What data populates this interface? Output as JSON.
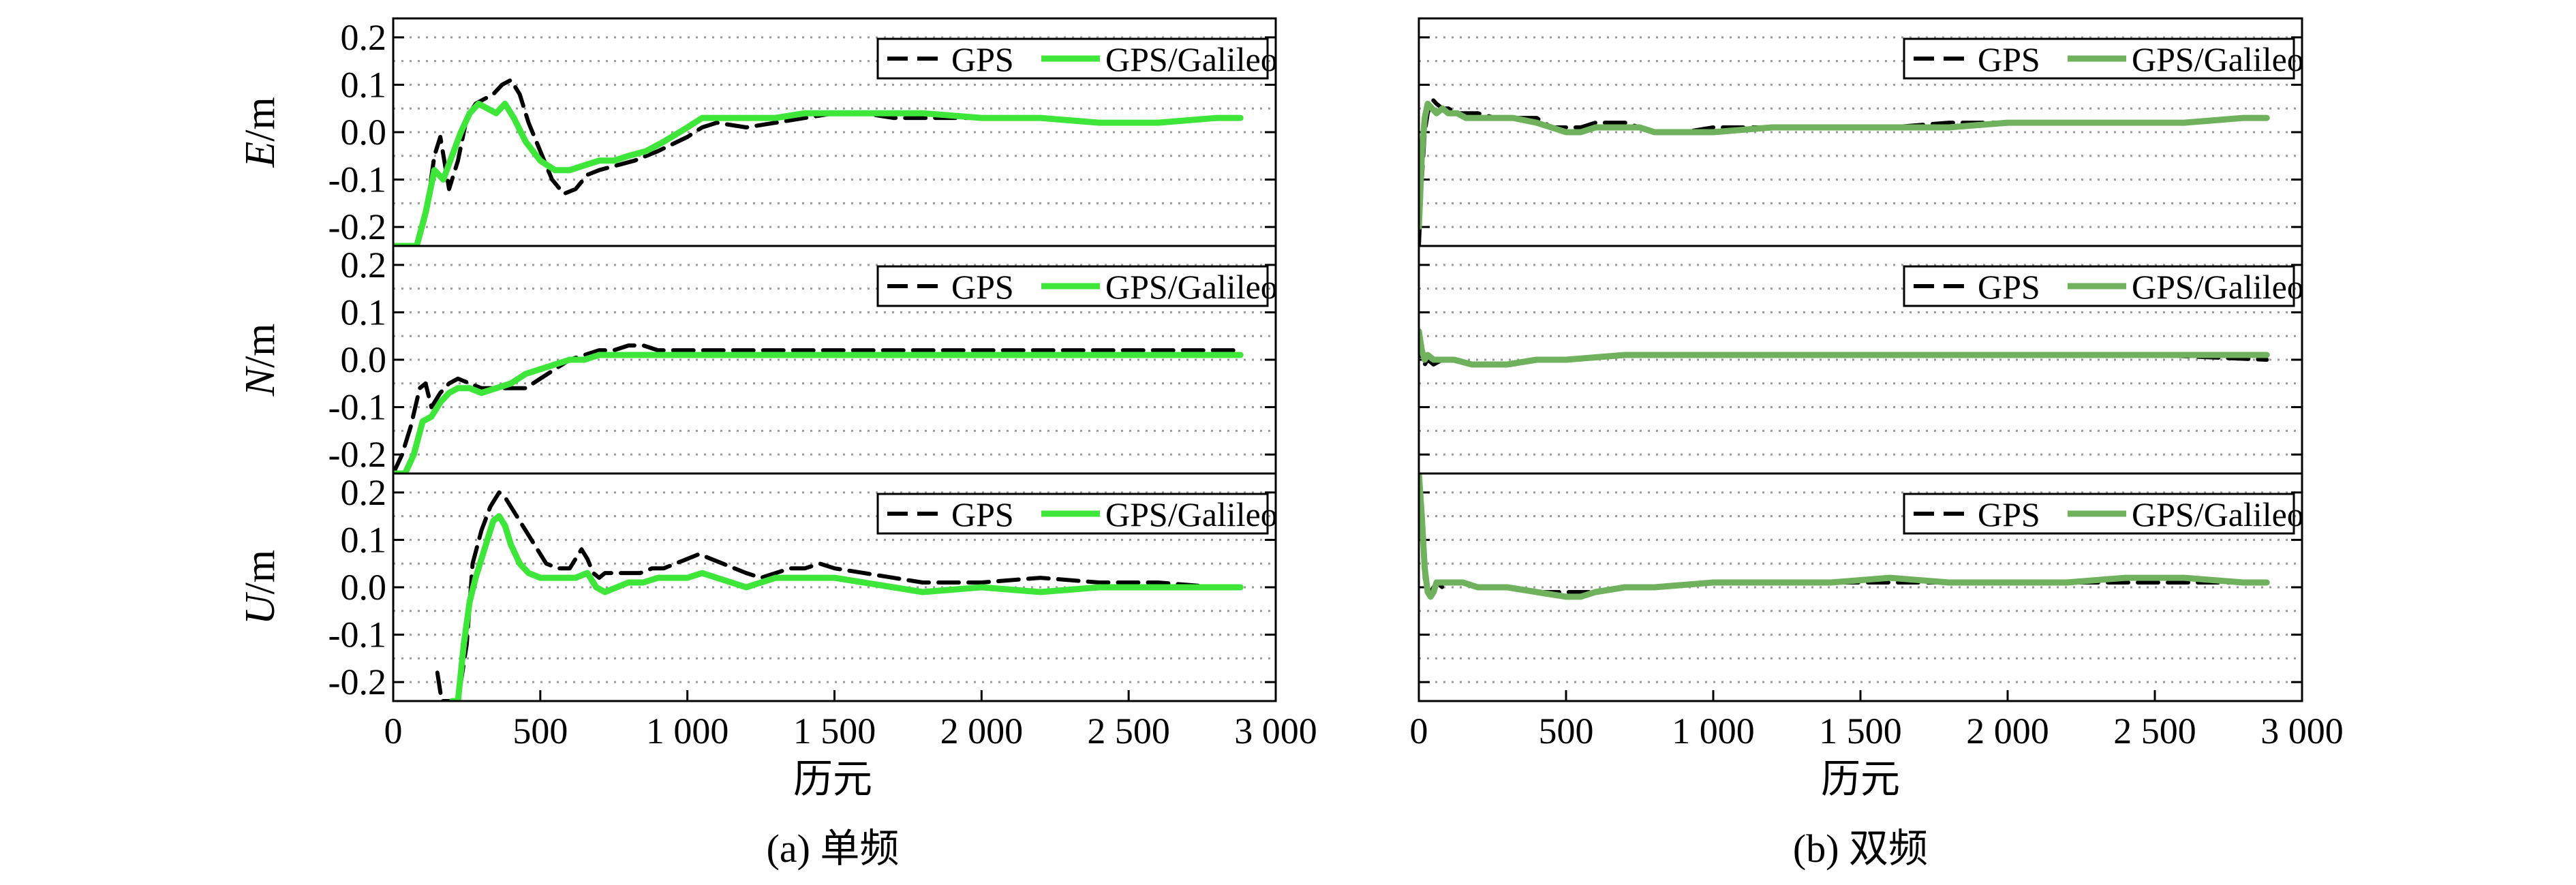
{
  "figure": {
    "panel_a_caption": "(a) 单频",
    "panel_b_caption": "(b) 双频",
    "xlabel": "历元",
    "x_tick_labels": [
      "0",
      "500",
      "1 000",
      "1 500",
      "2 000",
      "2 500",
      "3 000"
    ],
    "y_tick_labels": [
      "0.2",
      "0.1",
      "0.0",
      "-0.1",
      "-0.2"
    ],
    "legend": [
      "GPS",
      "GPS/Galileo"
    ],
    "rows": [
      {
        "id": "E",
        "label_italic": "E",
        "label_unit": "/m"
      },
      {
        "id": "N",
        "label_italic": "N",
        "label_unit": "/m"
      },
      {
        "id": "U",
        "label_italic": "U",
        "label_unit": "/m"
      }
    ]
  },
  "colors": {
    "gps": "#000000",
    "gps_galileo_single": "#3ee63a",
    "gps_galileo_dual": "#6fb15c",
    "grid": "#9a9a9a",
    "axis": "#000000"
  },
  "chart_data": [
    {
      "panel": "a",
      "row": "E",
      "type": "line",
      "xlim": [
        0,
        3000
      ],
      "ylim": [
        -0.24,
        0.24
      ],
      "xlabel": "",
      "ylabel": "E/m",
      "grid": true,
      "legend_position": "top-right",
      "series": [
        {
          "name": "GPS",
          "style": "dashed",
          "x": [
            0,
            40,
            80,
            110,
            140,
            160,
            190,
            220,
            250,
            280,
            310,
            340,
            370,
            400,
            430,
            460,
            500,
            540,
            580,
            620,
            660,
            700,
            760,
            820,
            900,
            1000,
            1050,
            1100,
            1200,
            1300,
            1400,
            1500,
            1600,
            1700,
            1800,
            2000,
            2200,
            2400,
            2600,
            2800,
            2880
          ],
          "y": [
            -0.24,
            -0.24,
            -0.24,
            -0.18,
            -0.05,
            -0.01,
            -0.12,
            -0.06,
            0.03,
            0.06,
            0.07,
            0.08,
            0.1,
            0.11,
            0.08,
            0.02,
            -0.04,
            -0.1,
            -0.13,
            -0.12,
            -0.09,
            -0.08,
            -0.07,
            -0.06,
            -0.04,
            -0.01,
            0.01,
            0.02,
            0.01,
            0.02,
            0.03,
            0.04,
            0.04,
            0.03,
            0.03,
            0.03,
            0.03,
            0.02,
            0.02,
            0.03,
            0.03
          ]
        },
        {
          "name": "GPS/Galileo",
          "style": "solid",
          "x": [
            0,
            40,
            80,
            110,
            140,
            170,
            200,
            230,
            260,
            290,
            320,
            350,
            380,
            410,
            450,
            500,
            550,
            600,
            650,
            700,
            750,
            800,
            860,
            920,
            1000,
            1050,
            1100,
            1200,
            1300,
            1400,
            1500,
            1600,
            1700,
            1800,
            2000,
            2200,
            2400,
            2600,
            2800,
            2880
          ],
          "y": [
            -0.24,
            -0.24,
            -0.24,
            -0.17,
            -0.08,
            -0.1,
            -0.05,
            0.0,
            0.04,
            0.06,
            0.05,
            0.04,
            0.06,
            0.03,
            -0.02,
            -0.06,
            -0.08,
            -0.08,
            -0.07,
            -0.06,
            -0.06,
            -0.05,
            -0.04,
            -0.02,
            0.01,
            0.03,
            0.03,
            0.03,
            0.03,
            0.04,
            0.04,
            0.04,
            0.04,
            0.04,
            0.03,
            0.03,
            0.02,
            0.02,
            0.03,
            0.03
          ]
        }
      ]
    },
    {
      "panel": "a",
      "row": "N",
      "type": "line",
      "xlim": [
        0,
        3000
      ],
      "ylim": [
        -0.24,
        0.24
      ],
      "xlabel": "",
      "ylabel": "N/m",
      "grid": true,
      "legend_position": "top-right",
      "series": [
        {
          "name": "GPS",
          "style": "dashed",
          "x": [
            0,
            30,
            60,
            90,
            110,
            130,
            160,
            190,
            220,
            260,
            300,
            350,
            400,
            450,
            500,
            550,
            600,
            650,
            700,
            750,
            800,
            850,
            900,
            1000,
            1100,
            1200,
            1400,
            1600,
            1800,
            2000,
            2200,
            2400,
            2600,
            2800,
            2880
          ],
          "y": [
            -0.24,
            -0.2,
            -0.14,
            -0.06,
            -0.05,
            -0.1,
            -0.07,
            -0.05,
            -0.04,
            -0.05,
            -0.06,
            -0.06,
            -0.06,
            -0.06,
            -0.04,
            -0.02,
            0.0,
            0.01,
            0.02,
            0.02,
            0.03,
            0.03,
            0.02,
            0.02,
            0.02,
            0.02,
            0.02,
            0.02,
            0.02,
            0.02,
            0.02,
            0.02,
            0.02,
            0.02,
            0.02
          ]
        },
        {
          "name": "GPS/Galileo",
          "style": "solid",
          "x": [
            0,
            40,
            70,
            100,
            130,
            160,
            190,
            220,
            260,
            300,
            350,
            400,
            450,
            500,
            550,
            600,
            650,
            700,
            800,
            900,
            1000,
            1200,
            1400,
            1600,
            1800,
            2000,
            2200,
            2400,
            2600,
            2800,
            2880
          ],
          "y": [
            -0.24,
            -0.24,
            -0.2,
            -0.13,
            -0.12,
            -0.09,
            -0.07,
            -0.06,
            -0.06,
            -0.07,
            -0.06,
            -0.05,
            -0.03,
            -0.02,
            -0.01,
            0.0,
            0.0,
            0.01,
            0.01,
            0.01,
            0.01,
            0.01,
            0.01,
            0.01,
            0.01,
            0.01,
            0.01,
            0.01,
            0.01,
            0.01,
            0.01
          ]
        }
      ]
    },
    {
      "panel": "a",
      "row": "U",
      "type": "line",
      "xlim": [
        0,
        3000
      ],
      "ylim": [
        -0.24,
        0.24
      ],
      "xlabel": "",
      "ylabel": "U/m",
      "grid": true,
      "legend_position": "top-right",
      "series": [
        {
          "name": "GPS",
          "style": "dashed",
          "x": [
            150,
            165,
            190,
            220,
            250,
            270,
            300,
            330,
            360,
            380,
            410,
            440,
            480,
            520,
            560,
            600,
            620,
            640,
            660,
            680,
            700,
            720,
            760,
            800,
            840,
            880,
            920,
            960,
            1000,
            1040,
            1080,
            1120,
            1160,
            1200,
            1250,
            1300,
            1350,
            1400,
            1450,
            1500,
            1600,
            1700,
            1800,
            1900,
            2000,
            2200,
            2400,
            2600,
            2800,
            2880
          ],
          "y": [
            -0.18,
            -0.24,
            -0.24,
            -0.24,
            -0.12,
            0.05,
            0.12,
            0.17,
            0.2,
            0.19,
            0.16,
            0.13,
            0.09,
            0.05,
            0.04,
            0.04,
            0.06,
            0.08,
            0.06,
            0.03,
            0.02,
            0.03,
            0.03,
            0.03,
            0.03,
            0.04,
            0.04,
            0.05,
            0.06,
            0.07,
            0.06,
            0.05,
            0.04,
            0.03,
            0.02,
            0.03,
            0.04,
            0.04,
            0.05,
            0.04,
            0.03,
            0.02,
            0.01,
            0.01,
            0.01,
            0.02,
            0.01,
            0.01,
            0.0,
            0.0
          ]
        },
        {
          "name": "GPS/Galileo",
          "style": "solid",
          "x": [
            200,
            220,
            240,
            260,
            280,
            300,
            320,
            340,
            360,
            380,
            400,
            430,
            460,
            500,
            540,
            580,
            620,
            660,
            690,
            720,
            760,
            800,
            850,
            900,
            950,
            1000,
            1050,
            1100,
            1150,
            1200,
            1250,
            1300,
            1400,
            1500,
            1600,
            1700,
            1800,
            2000,
            2200,
            2400,
            2600,
            2800,
            2880
          ],
          "y": [
            -0.24,
            -0.24,
            -0.12,
            -0.03,
            0.02,
            0.06,
            0.1,
            0.14,
            0.15,
            0.13,
            0.09,
            0.05,
            0.03,
            0.02,
            0.02,
            0.02,
            0.02,
            0.03,
            0.0,
            -0.01,
            0.0,
            0.01,
            0.01,
            0.02,
            0.02,
            0.02,
            0.03,
            0.02,
            0.01,
            0.0,
            0.01,
            0.02,
            0.02,
            0.02,
            0.01,
            0.0,
            -0.01,
            0.0,
            -0.01,
            0.0,
            0.0,
            0.0,
            0.0
          ]
        }
      ]
    },
    {
      "panel": "b",
      "row": "E",
      "type": "line",
      "xlim": [
        0,
        3000
      ],
      "ylim": [
        -0.24,
        0.24
      ],
      "xlabel": "",
      "ylabel": "",
      "grid": true,
      "legend_position": "top-right",
      "series": [
        {
          "name": "GPS",
          "style": "dashed",
          "x": [
            0,
            10,
            20,
            30,
            45,
            60,
            80,
            100,
            130,
            160,
            200,
            260,
            320,
            400,
            450,
            500,
            550,
            600,
            650,
            700,
            750,
            800,
            900,
            1000,
            1200,
            1400,
            1600,
            1800,
            2000,
            2200,
            2400,
            2600,
            2800,
            2880
          ],
          "y": [
            -0.24,
            -0.1,
            0.0,
            0.04,
            0.07,
            0.06,
            0.05,
            0.05,
            0.04,
            0.04,
            0.04,
            0.03,
            0.03,
            0.03,
            0.01,
            0.01,
            0.01,
            0.02,
            0.02,
            0.02,
            0.01,
            0.0,
            0.0,
            0.01,
            0.01,
            0.01,
            0.01,
            0.02,
            0.02,
            0.02,
            0.02,
            0.02,
            0.03,
            0.03
          ]
        },
        {
          "name": "GPS/Galileo",
          "style": "solid",
          "x": [
            0,
            10,
            20,
            30,
            45,
            60,
            80,
            100,
            130,
            160,
            200,
            260,
            320,
            400,
            450,
            500,
            550,
            600,
            650,
            700,
            750,
            800,
            900,
            1000,
            1200,
            1400,
            1600,
            1800,
            2000,
            2200,
            2400,
            2600,
            2800,
            2880
          ],
          "y": [
            -0.2,
            -0.05,
            0.03,
            0.06,
            0.05,
            0.04,
            0.05,
            0.04,
            0.04,
            0.03,
            0.03,
            0.03,
            0.03,
            0.02,
            0.01,
            0.0,
            0.0,
            0.01,
            0.01,
            0.01,
            0.01,
            0.0,
            0.0,
            0.0,
            0.01,
            0.01,
            0.01,
            0.01,
            0.02,
            0.02,
            0.02,
            0.02,
            0.03,
            0.03
          ]
        }
      ]
    },
    {
      "panel": "b",
      "row": "N",
      "type": "line",
      "xlim": [
        0,
        3000
      ],
      "ylim": [
        -0.24,
        0.24
      ],
      "xlabel": "",
      "ylabel": "",
      "grid": true,
      "legend_position": "top-right",
      "series": [
        {
          "name": "GPS",
          "style": "dashed",
          "x": [
            0,
            10,
            20,
            30,
            50,
            80,
            120,
            180,
            250,
            300,
            400,
            500,
            700,
            1000,
            1500,
            2000,
            2500,
            2880
          ],
          "y": [
            0.05,
            0.0,
            -0.01,
            0.0,
            -0.01,
            0.0,
            0.0,
            -0.01,
            -0.01,
            -0.01,
            0.0,
            0.0,
            0.01,
            0.01,
            0.01,
            0.01,
            0.01,
            0.0
          ]
        },
        {
          "name": "GPS/Galileo",
          "style": "solid",
          "x": [
            0,
            10,
            20,
            30,
            50,
            80,
            120,
            180,
            250,
            300,
            400,
            500,
            700,
            1000,
            1500,
            2000,
            2500,
            2880
          ],
          "y": [
            0.06,
            0.02,
            0.0,
            0.01,
            0.0,
            0.0,
            0.0,
            -0.01,
            -0.01,
            -0.01,
            0.0,
            0.0,
            0.01,
            0.01,
            0.01,
            0.01,
            0.01,
            0.01
          ]
        }
      ]
    },
    {
      "panel": "b",
      "row": "U",
      "type": "line",
      "xlim": [
        0,
        3000
      ],
      "ylim": [
        -0.24,
        0.24
      ],
      "xlabel": "",
      "ylabel": "",
      "grid": true,
      "legend_position": "top-right",
      "series": [
        {
          "name": "GPS",
          "style": "dashed",
          "x": [
            0,
            10,
            20,
            30,
            40,
            50,
            60,
            80,
            100,
            150,
            200,
            300,
            400,
            500,
            550,
            600,
            700,
            800,
            1000,
            1200,
            1400,
            1600,
            1800,
            2000,
            2200,
            2400,
            2600,
            2800,
            2880
          ],
          "y": [
            0.24,
            0.12,
            0.02,
            -0.01,
            -0.01,
            0.0,
            0.01,
            0.0,
            0.01,
            0.01,
            0.0,
            0.0,
            -0.01,
            -0.01,
            -0.01,
            -0.01,
            0.0,
            0.0,
            0.01,
            0.01,
            0.01,
            0.01,
            0.01,
            0.01,
            0.01,
            0.01,
            0.01,
            0.01,
            0.01
          ]
        },
        {
          "name": "GPS/Galileo",
          "style": "solid",
          "x": [
            0,
            10,
            20,
            30,
            40,
            50,
            60,
            80,
            100,
            150,
            200,
            300,
            400,
            500,
            550,
            600,
            700,
            800,
            1000,
            1200,
            1400,
            1600,
            1800,
            2000,
            2200,
            2400,
            2600,
            2800,
            2880
          ],
          "y": [
            0.24,
            0.15,
            0.04,
            -0.01,
            -0.02,
            -0.01,
            0.01,
            0.01,
            0.01,
            0.01,
            0.0,
            0.0,
            -0.01,
            -0.02,
            -0.02,
            -0.01,
            0.0,
            0.0,
            0.01,
            0.01,
            0.01,
            0.02,
            0.01,
            0.01,
            0.01,
            0.02,
            0.02,
            0.01,
            0.01
          ]
        }
      ]
    }
  ]
}
